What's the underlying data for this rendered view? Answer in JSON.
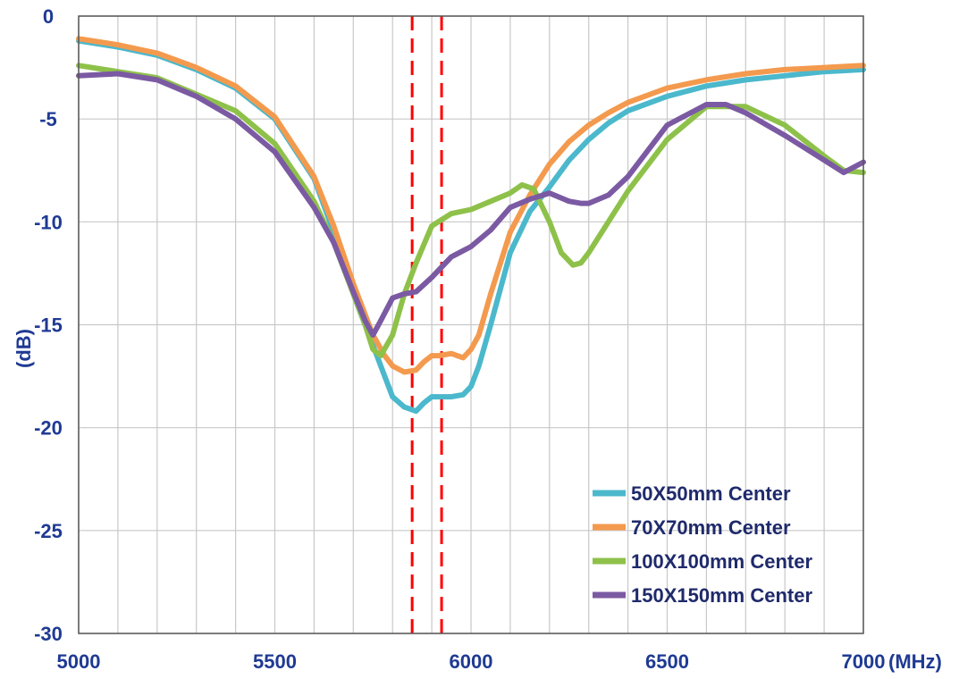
{
  "chart_data": {
    "type": "line",
    "title": "",
    "xlabel": "(MHz)",
    "ylabel": "(dB)",
    "xlim": [
      5000,
      7000
    ],
    "ylim": [
      -30,
      0
    ],
    "x_ticks": [
      5000,
      5500,
      6000,
      6500,
      7000
    ],
    "y_ticks": [
      0,
      -5,
      -10,
      -15,
      -20,
      -25,
      -30
    ],
    "x_tick_labels": [
      "5000",
      "5500",
      "6000",
      "6500",
      "7000"
    ],
    "y_tick_labels": [
      "0",
      "-5",
      "-10",
      "-15",
      "-20",
      "-25",
      "-30"
    ],
    "grid": true,
    "legend_position": "bottom-right",
    "markers": [
      {
        "x": 5850,
        "color": "#ff0000",
        "style": "dashed"
      },
      {
        "x": 5925,
        "color": "#ff0000",
        "style": "dashed"
      }
    ],
    "series": [
      {
        "name": "50X50mm Center",
        "color": "#4bb8cc",
        "x": [
          5000,
          5100,
          5200,
          5300,
          5400,
          5500,
          5600,
          5650,
          5700,
          5750,
          5780,
          5800,
          5830,
          5860,
          5880,
          5900,
          5920,
          5950,
          5980,
          6000,
          6020,
          6050,
          6100,
          6150,
          6200,
          6250,
          6300,
          6350,
          6400,
          6500,
          6600,
          6700,
          6800,
          6900,
          7000
        ],
        "y": [
          -1.2,
          -1.5,
          -1.9,
          -2.6,
          -3.5,
          -5.0,
          -7.9,
          -10.5,
          -13.5,
          -16.0,
          -17.5,
          -18.5,
          -19.0,
          -19.2,
          -18.8,
          -18.5,
          -18.5,
          -18.5,
          -18.4,
          -18.0,
          -17.0,
          -15.0,
          -11.5,
          -9.5,
          -8.3,
          -7.0,
          -6.0,
          -5.2,
          -4.6,
          -3.9,
          -3.4,
          -3.1,
          -2.9,
          -2.7,
          -2.6
        ]
      },
      {
        "name": "70X70mm Center",
        "color": "#f39a4e",
        "x": [
          5000,
          5100,
          5200,
          5300,
          5400,
          5500,
          5600,
          5650,
          5700,
          5750,
          5780,
          5800,
          5830,
          5860,
          5880,
          5900,
          5920,
          5950,
          5980,
          6000,
          6020,
          6050,
          6100,
          6150,
          6200,
          6250,
          6300,
          6350,
          6400,
          6500,
          6600,
          6700,
          6800,
          6900,
          7000
        ],
        "y": [
          -1.1,
          -1.4,
          -1.8,
          -2.5,
          -3.4,
          -4.9,
          -7.8,
          -10.2,
          -13.0,
          -15.5,
          -16.5,
          -17.0,
          -17.3,
          -17.2,
          -16.8,
          -16.5,
          -16.5,
          -16.4,
          -16.6,
          -16.2,
          -15.5,
          -13.5,
          -10.5,
          -8.7,
          -7.2,
          -6.1,
          -5.3,
          -4.7,
          -4.2,
          -3.5,
          -3.1,
          -2.8,
          -2.6,
          -2.5,
          -2.4
        ]
      },
      {
        "name": "100X100mm Center",
        "color": "#8ec14a",
        "x": [
          5000,
          5100,
          5200,
          5300,
          5400,
          5500,
          5600,
          5650,
          5700,
          5730,
          5750,
          5770,
          5800,
          5830,
          5860,
          5900,
          5950,
          6000,
          6050,
          6100,
          6130,
          6160,
          6200,
          6230,
          6260,
          6280,
          6300,
          6350,
          6400,
          6500,
          6600,
          6700,
          6800,
          6900,
          6950,
          7000
        ],
        "y": [
          -2.4,
          -2.7,
          -3.0,
          -3.8,
          -4.6,
          -6.2,
          -9.0,
          -11.0,
          -13.5,
          -15.0,
          -16.2,
          -16.5,
          -15.5,
          -13.5,
          -12.0,
          -10.2,
          -9.6,
          -9.4,
          -9.0,
          -8.6,
          -8.2,
          -8.4,
          -10.0,
          -11.5,
          -12.1,
          -12.0,
          -11.5,
          -10.0,
          -8.5,
          -6.0,
          -4.4,
          -4.4,
          -5.3,
          -6.8,
          -7.5,
          -7.6
        ]
      },
      {
        "name": "150X150mm Center",
        "color": "#7b5aa3",
        "x": [
          5000,
          5100,
          5200,
          5300,
          5400,
          5500,
          5600,
          5650,
          5700,
          5730,
          5750,
          5770,
          5800,
          5830,
          5860,
          5900,
          5950,
          6000,
          6050,
          6100,
          6150,
          6200,
          6250,
          6280,
          6300,
          6350,
          6400,
          6500,
          6600,
          6650,
          6700,
          6800,
          6900,
          6950,
          7000
        ],
        "y": [
          -2.9,
          -2.8,
          -3.1,
          -3.9,
          -5.0,
          -6.6,
          -9.3,
          -11.0,
          -13.4,
          -14.8,
          -15.5,
          -14.8,
          -13.7,
          -13.5,
          -13.4,
          -12.7,
          -11.7,
          -11.2,
          -10.4,
          -9.3,
          -8.9,
          -8.6,
          -9.0,
          -9.1,
          -9.1,
          -8.7,
          -7.8,
          -5.3,
          -4.3,
          -4.3,
          -4.7,
          -5.8,
          -7.0,
          -7.6,
          -7.1
        ]
      }
    ]
  }
}
